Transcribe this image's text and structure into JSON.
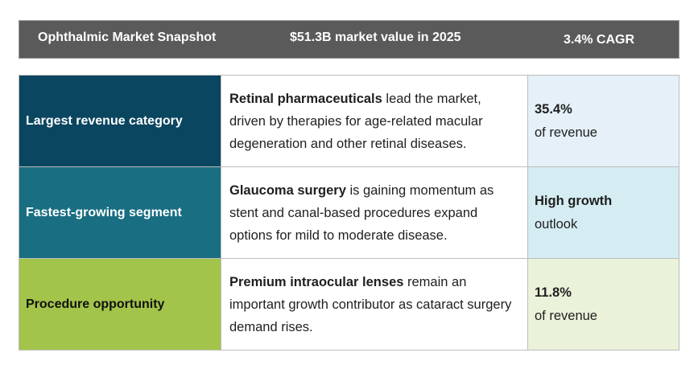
{
  "header": {
    "title": "Ophthalmic Market Snapshot",
    "market_value": "$51.3B market value in 2025",
    "cagr": "3.4% CAGR"
  },
  "rows": [
    {
      "label": "Largest revenue category",
      "highlight": "Retinal pharmaceuticals",
      "description": " lead the market, driven by therapies for age-related macular degeneration and other retinal diseases.",
      "stat_main": "35.4%",
      "stat_sub": "of revenue",
      "label_color": "#0b4660",
      "stat_bg": "#e5f0f8"
    },
    {
      "label": "Fastest-growing segment",
      "highlight": "Glaucoma surgery",
      "description": " is gaining momentum as stent and canal-based procedures expand options for mild to moderate disease.",
      "stat_main": "High growth",
      "stat_sub": "outlook",
      "label_color": "#1a6e82",
      "stat_bg": "#d4ecf2"
    },
    {
      "label": "Procedure opportunity",
      "highlight": "Premium intraocular lenses",
      "description": " remain an important growth contributor as cataract surgery demand rises.",
      "stat_main": "11.8%",
      "stat_sub": "of revenue",
      "label_color": "#a3c44a",
      "stat_bg": "#eaf2da"
    }
  ]
}
